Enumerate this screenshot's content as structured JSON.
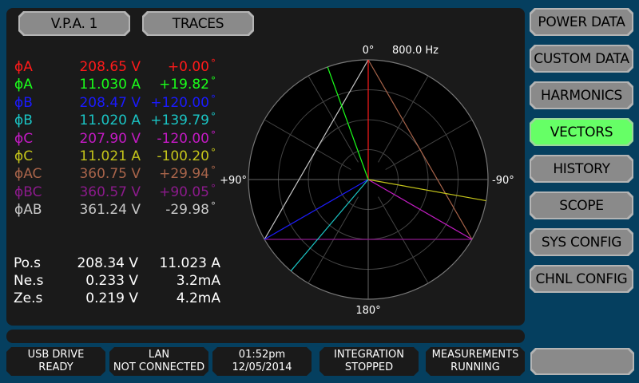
{
  "top_buttons": {
    "vpa": "V.P.A. 1",
    "traces": "TRACES"
  },
  "nav": [
    {
      "label": "POWER DATA",
      "active": false
    },
    {
      "label": "CUSTOM DATA",
      "active": false
    },
    {
      "label": "HARMONICS",
      "active": false
    },
    {
      "label": "VECTORS",
      "active": true
    },
    {
      "label": "HISTORY",
      "active": false
    },
    {
      "label": "SCOPE",
      "active": false
    },
    {
      "label": "SYS CONFIG",
      "active": false
    },
    {
      "label": "CHNL CONFIG",
      "active": false
    }
  ],
  "measurements": [
    {
      "label": "ϕA",
      "value": "208.65 V",
      "angle": "+0.00",
      "color": "#ff1a1a"
    },
    {
      "label": "ϕA",
      "value": "11.030 A",
      "angle": "+19.82",
      "color": "#1aff1a"
    },
    {
      "label": "ϕB",
      "value": "208.47 V",
      "angle": "+120.00",
      "color": "#1a1aff"
    },
    {
      "label": "ϕB",
      "value": "11.020 A",
      "angle": "+139.79",
      "color": "#1ac4c4"
    },
    {
      "label": "ϕC",
      "value": "207.90 V",
      "angle": "-120.00",
      "color": "#c41ac4"
    },
    {
      "label": "ϕC",
      "value": "11.021 A",
      "angle": "-100.20",
      "color": "#c4c41a"
    },
    {
      "label": "ϕAC",
      "value": "360.75 V",
      "angle": "+29.94",
      "color": "#a8644a"
    },
    {
      "label": "ϕBC",
      "value": "360.57 V",
      "angle": "+90.05",
      "color": "#8c1a8c"
    },
    {
      "label": "ϕAB",
      "value": "361.24 V",
      "angle": "-29.98",
      "color": "#c8c8c8"
    }
  ],
  "degree_symbol": "°",
  "sequence": [
    {
      "label": "Po.s",
      "voltage": "208.34 V",
      "current": "11.023 A"
    },
    {
      "label": "Ne.s",
      "voltage": "0.233 V",
      "current": "3.2mA"
    },
    {
      "label": "Ze.s",
      "voltage": "0.219 V",
      "current": "4.2mA"
    }
  ],
  "polar": {
    "label_top": "0°",
    "label_bottom": "180°",
    "label_left": "+90°",
    "label_right": "-90°",
    "frequency": "800.0 Hz",
    "phase_vectors": [
      {
        "name": "VA",
        "angle": 0,
        "color": "#ff1a1a"
      },
      {
        "name": "IA",
        "angle": 19.82,
        "color": "#1aff1a"
      },
      {
        "name": "VB",
        "angle": 120,
        "color": "#1a1aff"
      },
      {
        "name": "IB",
        "angle": 139.79,
        "color": "#1ac4c4"
      },
      {
        "name": "VC",
        "angle": -120,
        "color": "#c41ac4"
      },
      {
        "name": "IC",
        "angle": -100.2,
        "color": "#c4c41a"
      }
    ],
    "line_vectors": [
      {
        "name": "AB",
        "from": "VB",
        "to": "VA",
        "color": "#c8c8c8"
      },
      {
        "name": "AC",
        "from": "VA",
        "to": "VC",
        "color": "#a8644a"
      },
      {
        "name": "BC",
        "from": "VB",
        "to": "VC",
        "color": "#8c1a8c"
      }
    ]
  },
  "status": [
    {
      "line1": "USB DRIVE",
      "line2": "READY"
    },
    {
      "line1": "LAN",
      "line2": "NOT CONNECTED"
    },
    {
      "line1": "01:52pm",
      "line2": "12/05/2014"
    },
    {
      "line1": "INTEGRATION",
      "line2": "STOPPED"
    },
    {
      "line1": "MEASUREMENTS",
      "line2": "RUNNING"
    }
  ]
}
